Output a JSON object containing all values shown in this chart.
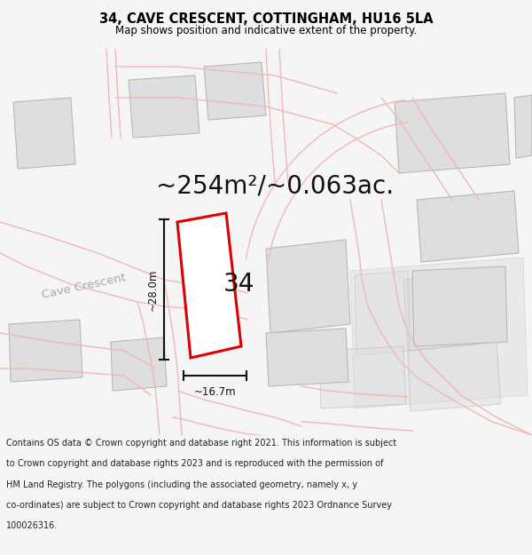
{
  "title_line1": "34, CAVE CRESCENT, COTTINGHAM, HU16 5LA",
  "title_line2": "Map shows position and indicative extent of the property.",
  "area_text": "~254m²/~0.063ac.",
  "label_34": "34",
  "dim_width": "~16.7m",
  "dim_height": "~28.0m",
  "street_label": "Cave Crescent",
  "footer_lines": [
    "Contains OS data © Crown copyright and database right 2021. This information is subject",
    "to Crown copyright and database rights 2023 and is reproduced with the permission of",
    "HM Land Registry. The polygons (including the associated geometry, namely x, y",
    "co-ordinates) are subject to Crown copyright and database rights 2023 Ordnance Survey",
    "100026316."
  ],
  "bg_color": "#f5f5f5",
  "map_bg": "#ffffff",
  "building_fill": "#dedede",
  "building_edge": "#b8b8b8",
  "road_color": "#f0b8b8",
  "road_fill": "#faeaea",
  "plot_outline_color": "#dd0000",
  "plot_fill": "#ffffff",
  "dim_line_color": "#111111",
  "title_fontsize": 10.5,
  "subtitle_fontsize": 8.5,
  "area_fontsize": 20,
  "label_fontsize": 20,
  "street_fontsize": 9.5,
  "dim_fontsize": 8.5,
  "footer_fontsize": 7.0
}
